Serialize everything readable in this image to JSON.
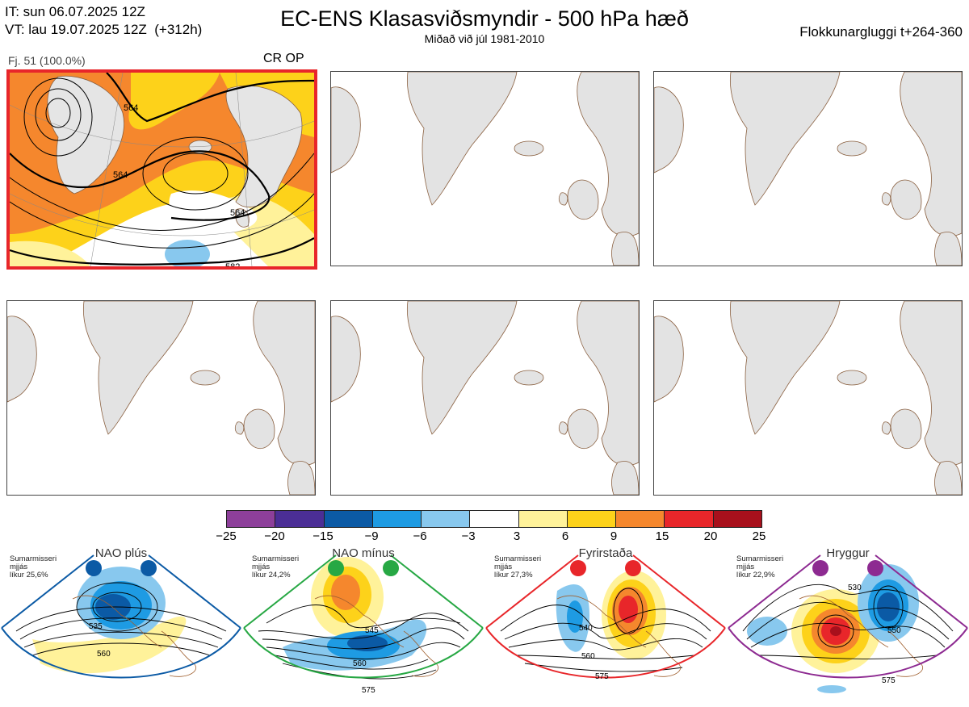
{
  "header": {
    "it_line": "IT: sun 06.07.2025 12Z",
    "vt_line": "VT: lau 19.07.2025 12Z  (+312h)",
    "title": "EC-ENS Klasasviðsmyndir - 500 hPa hæð",
    "subtitle": "Miðað við júl 1981-2010",
    "window": "Flokkunargluggi t+264-360"
  },
  "selected_panel": {
    "members": "Fj. 51 (100.0%)",
    "label": "CR OP",
    "contour_labels": [
      "564",
      "564",
      "564",
      "582"
    ]
  },
  "colorbar": {
    "colors": [
      "#8d3f9a",
      "#4b2e96",
      "#0b5aa5",
      "#1e9be3",
      "#88c8ee",
      "#ffffff",
      "#fff29a",
      "#fdd21a",
      "#f5872d",
      "#e8262a",
      "#a8101c"
    ],
    "ticks": [
      "−25",
      "−20",
      "−15",
      "−9",
      "−6",
      "−3",
      "3",
      "6",
      "9",
      "15",
      "20",
      "25"
    ]
  },
  "regimes": [
    {
      "name": "NAO plús",
      "desc": "Sumarmisseri\nmjjás\nlíkur 25,6%",
      "color": "#0b5aa5",
      "labels": [
        "535",
        "560"
      ]
    },
    {
      "name": "NAO mínus",
      "desc": "Sumarmisseri\nmjjás\nlíkur 24,2%",
      "color": "#27a844",
      "labels": [
        "545",
        "560",
        "575"
      ]
    },
    {
      "name": "Fyrirstaða",
      "desc": "Sumarmisseri\nmjjás\nlíkur 27,3%",
      "color": "#e8262a",
      "labels": [
        "540",
        "560",
        "575"
      ]
    },
    {
      "name": "Hryggur",
      "desc": "Sumarmisseri\nmjjás\nlíkur 22,9%",
      "color": "#8d2a91",
      "labels": [
        "530",
        "550",
        "575"
      ]
    }
  ]
}
